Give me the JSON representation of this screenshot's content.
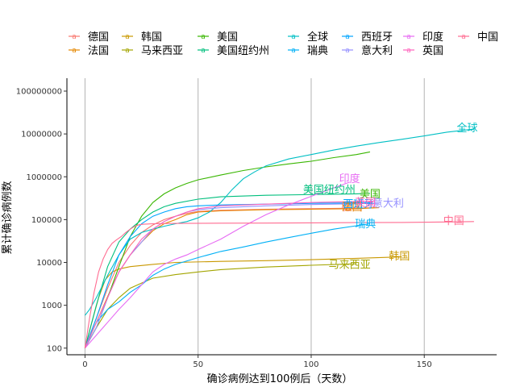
{
  "chart_data": {
    "type": "line",
    "xlabel": "确诊病例达到100例后（天数）",
    "ylabel": "累计确诊病例数",
    "x_scale": "linear",
    "y_scale": "log",
    "xlim": [
      -8,
      182
    ],
    "ylim": [
      70,
      200000000
    ],
    "x_ticks": [
      0,
      50,
      100,
      150
    ],
    "y_ticks": [
      100,
      1000,
      10000,
      100000,
      1000000,
      10000000,
      100000000
    ],
    "y_tick_labels": [
      "100",
      "1000",
      "10000",
      "100000",
      "1000000",
      "10000000",
      "100000000"
    ],
    "grid": "vertical",
    "legend_placement": "top",
    "series": [
      {
        "name": "德国",
        "color": "#F8766D",
        "label_x": 118,
        "label_y": 200000,
        "points": [
          [
            0,
            100
          ],
          [
            5,
            500
          ],
          [
            10,
            2500
          ],
          [
            15,
            10000
          ],
          [
            20,
            25000
          ],
          [
            25,
            50000
          ],
          [
            30,
            75000
          ],
          [
            35,
            100000
          ],
          [
            40,
            120000
          ],
          [
            45,
            140000
          ],
          [
            50,
            155000
          ],
          [
            60,
            165000
          ],
          [
            80,
            175000
          ],
          [
            100,
            180000
          ],
          [
            120,
            185000
          ],
          [
            128,
            190000
          ]
        ]
      },
      {
        "name": "法国",
        "color": "#E58700",
        "label_x": 118,
        "label_y": 200000,
        "points": [
          [
            0,
            100
          ],
          [
            5,
            400
          ],
          [
            10,
            1600
          ],
          [
            15,
            6000
          ],
          [
            20,
            15000
          ],
          [
            25,
            30000
          ],
          [
            30,
            55000
          ],
          [
            35,
            80000
          ],
          [
            40,
            100000
          ],
          [
            45,
            130000
          ],
          [
            50,
            150000
          ],
          [
            60,
            160000
          ],
          [
            80,
            170000
          ],
          [
            100,
            175000
          ],
          [
            120,
            180000
          ],
          [
            130,
            190000
          ]
        ]
      },
      {
        "name": "韩国",
        "color": "#C99800",
        "label_x": 139,
        "label_y": 14000,
        "points": [
          [
            0,
            100
          ],
          [
            3,
            400
          ],
          [
            6,
            1500
          ],
          [
            9,
            4000
          ],
          [
            12,
            6000
          ],
          [
            15,
            7000
          ],
          [
            20,
            8000
          ],
          [
            30,
            9000
          ],
          [
            40,
            10000
          ],
          [
            60,
            10600
          ],
          [
            80,
            11000
          ],
          [
            100,
            11600
          ],
          [
            120,
            12500
          ],
          [
            140,
            13500
          ]
        ]
      },
      {
        "name": "马来西亚",
        "color": "#A3A500",
        "label_x": 117,
        "label_y": 9000,
        "points": [
          [
            0,
            100
          ],
          [
            5,
            300
          ],
          [
            10,
            800
          ],
          [
            15,
            1500
          ],
          [
            20,
            2500
          ],
          [
            25,
            3300
          ],
          [
            30,
            4300
          ],
          [
            40,
            5200
          ],
          [
            50,
            6000
          ],
          [
            60,
            6800
          ],
          [
            80,
            7800
          ],
          [
            100,
            8600
          ],
          [
            120,
            9300
          ]
        ]
      },
      {
        "name": "美国",
        "color": "#39B600",
        "label_x": 126,
        "label_y": 400000,
        "points": [
          [
            0,
            100
          ],
          [
            5,
            300
          ],
          [
            10,
            1500
          ],
          [
            15,
            8000
          ],
          [
            20,
            40000
          ],
          [
            25,
            120000
          ],
          [
            30,
            250000
          ],
          [
            35,
            400000
          ],
          [
            40,
            550000
          ],
          [
            45,
            700000
          ],
          [
            50,
            850000
          ],
          [
            60,
            1100000
          ],
          [
            70,
            1400000
          ],
          [
            80,
            1700000
          ],
          [
            90,
            2000000
          ],
          [
            100,
            2300000
          ],
          [
            110,
            2800000
          ],
          [
            120,
            3300000
          ],
          [
            126,
            3800000
          ]
        ]
      },
      {
        "name": "美国纽约州",
        "color": "#00BF7D",
        "label_x": 108,
        "label_y": 500000,
        "points": [
          [
            0,
            100
          ],
          [
            5,
            1000
          ],
          [
            10,
            8000
          ],
          [
            15,
            30000
          ],
          [
            20,
            60000
          ],
          [
            25,
            100000
          ],
          [
            30,
            150000
          ],
          [
            35,
            200000
          ],
          [
            40,
            240000
          ],
          [
            50,
            300000
          ],
          [
            60,
            340000
          ],
          [
            80,
            370000
          ],
          [
            100,
            385000
          ],
          [
            120,
            400000
          ],
          [
            126,
            410000
          ]
        ]
      },
      {
        "name": "全球",
        "color": "#00BFC4",
        "label_x": 169,
        "label_y": 14000000,
        "points": [
          [
            0,
            580
          ],
          [
            2,
            800
          ],
          [
            5,
            1500
          ],
          [
            10,
            5000
          ],
          [
            15,
            15000
          ],
          [
            20,
            35000
          ],
          [
            25,
            50000
          ],
          [
            30,
            60000
          ],
          [
            35,
            70000
          ],
          [
            40,
            80000
          ],
          [
            45,
            90000
          ],
          [
            50,
            110000
          ],
          [
            55,
            150000
          ],
          [
            60,
            250000
          ],
          [
            65,
            500000
          ],
          [
            70,
            900000
          ],
          [
            75,
            1300000
          ],
          [
            80,
            1800000
          ],
          [
            90,
            2600000
          ],
          [
            100,
            3300000
          ],
          [
            110,
            4200000
          ],
          [
            120,
            5200000
          ],
          [
            130,
            6300000
          ],
          [
            140,
            7500000
          ],
          [
            150,
            9000000
          ],
          [
            160,
            11000000
          ],
          [
            172,
            13000000
          ]
        ]
      },
      {
        "name": "瑞典",
        "color": "#00B0F6",
        "label_x": 124,
        "label_y": 80000,
        "points": [
          [
            0,
            100
          ],
          [
            5,
            400
          ],
          [
            10,
            800
          ],
          [
            15,
            1200
          ],
          [
            20,
            2000
          ],
          [
            25,
            3000
          ],
          [
            30,
            5000
          ],
          [
            35,
            7000
          ],
          [
            40,
            9000
          ],
          [
            50,
            13000
          ],
          [
            60,
            18000
          ],
          [
            70,
            23000
          ],
          [
            80,
            30000
          ],
          [
            90,
            38000
          ],
          [
            100,
            48000
          ],
          [
            110,
            60000
          ],
          [
            120,
            72000
          ],
          [
            126,
            80000
          ]
        ]
      },
      {
        "name": "西班牙",
        "color": "#00A5FF",
        "label_x": 121,
        "label_y": 230000,
        "points": [
          [
            0,
            100
          ],
          [
            5,
            500
          ],
          [
            10,
            3000
          ],
          [
            15,
            15000
          ],
          [
            20,
            40000
          ],
          [
            25,
            80000
          ],
          [
            30,
            120000
          ],
          [
            35,
            150000
          ],
          [
            40,
            180000
          ],
          [
            45,
            200000
          ],
          [
            50,
            210000
          ],
          [
            60,
            220000
          ],
          [
            80,
            230000
          ],
          [
            100,
            240000
          ],
          [
            120,
            245000
          ],
          [
            127,
            250000
          ]
        ]
      },
      {
        "name": "意大利",
        "color": "#9590FF",
        "label_x": 134,
        "label_y": 240000,
        "points": [
          [
            0,
            100
          ],
          [
            5,
            300
          ],
          [
            10,
            1500
          ],
          [
            15,
            6000
          ],
          [
            20,
            15000
          ],
          [
            25,
            30000
          ],
          [
            30,
            60000
          ],
          [
            35,
            90000
          ],
          [
            40,
            120000
          ],
          [
            45,
            150000
          ],
          [
            50,
            170000
          ],
          [
            60,
            190000
          ],
          [
            80,
            210000
          ],
          [
            100,
            225000
          ],
          [
            120,
            235000
          ],
          [
            130,
            240000
          ]
        ]
      },
      {
        "name": "印度",
        "color": "#E76BF3",
        "label_x": 117,
        "label_y": 900000,
        "points": [
          [
            0,
            100
          ],
          [
            5,
            200
          ],
          [
            10,
            400
          ],
          [
            15,
            800
          ],
          [
            20,
            1500
          ],
          [
            25,
            3000
          ],
          [
            30,
            6000
          ],
          [
            35,
            9000
          ],
          [
            40,
            12000
          ],
          [
            45,
            15000
          ],
          [
            50,
            20000
          ],
          [
            60,
            35000
          ],
          [
            70,
            70000
          ],
          [
            80,
            130000
          ],
          [
            90,
            220000
          ],
          [
            100,
            350000
          ],
          [
            110,
            550000
          ],
          [
            117,
            750000
          ]
        ]
      },
      {
        "name": "英国",
        "color": "#FF62BC",
        "label_x": 124,
        "label_y": 250000,
        "points": [
          [
            0,
            100
          ],
          [
            5,
            400
          ],
          [
            10,
            1500
          ],
          [
            15,
            6000
          ],
          [
            20,
            15000
          ],
          [
            25,
            35000
          ],
          [
            30,
            60000
          ],
          [
            35,
            90000
          ],
          [
            40,
            120000
          ],
          [
            45,
            150000
          ],
          [
            50,
            180000
          ],
          [
            60,
            210000
          ],
          [
            80,
            230000
          ],
          [
            100,
            250000
          ],
          [
            120,
            265000
          ],
          [
            128,
            270000
          ]
        ]
      },
      {
        "name": "中国",
        "color": "#FF6C91",
        "label_x": 163,
        "label_y": 95000,
        "points": [
          [
            0,
            100
          ],
          [
            2,
            500
          ],
          [
            4,
            2000
          ],
          [
            6,
            6000
          ],
          [
            8,
            12000
          ],
          [
            10,
            20000
          ],
          [
            12,
            28000
          ],
          [
            14,
            34000
          ],
          [
            16,
            40000
          ],
          [
            18,
            50000
          ],
          [
            20,
            60000
          ],
          [
            22,
            70000
          ],
          [
            24,
            76000
          ],
          [
            26,
            78000
          ],
          [
            28,
            79000
          ],
          [
            30,
            80000
          ],
          [
            40,
            81500
          ],
          [
            60,
            82500
          ],
          [
            80,
            83000
          ],
          [
            100,
            84000
          ],
          [
            120,
            85000
          ],
          [
            140,
            86000
          ],
          [
            160,
            88000
          ],
          [
            172,
            90000
          ]
        ]
      }
    ]
  }
}
